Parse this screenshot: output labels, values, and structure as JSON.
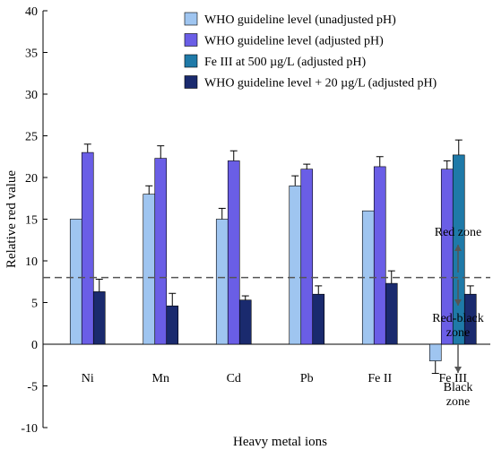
{
  "chart_data": {
    "type": "bar",
    "xlabel": "Heavy metal ions",
    "ylabel": "Relative red value",
    "ylim": [
      -10,
      40
    ],
    "yticks": [
      -10,
      -5,
      0,
      5,
      10,
      15,
      20,
      25,
      30,
      35,
      40
    ],
    "categories": [
      "Ni",
      "Mn",
      "Cd",
      "Pb",
      "Fe II",
      "Fe III"
    ],
    "grid": false,
    "legend_position": "top-right",
    "series": [
      {
        "name": "WHO guideline level (unadjusted pH)",
        "color": "#9fc5f0",
        "values": [
          15.0,
          18.0,
          15.0,
          19.0,
          16.0,
          -2.0
        ],
        "errors": [
          0,
          1.0,
          1.3,
          1.2,
          0,
          1.5
        ]
      },
      {
        "name": "WHO guideline level (adjusted pH)",
        "color": "#6a5ee6",
        "values": [
          23.0,
          22.3,
          22.0,
          21.0,
          21.3,
          21.0
        ],
        "errors": [
          1.0,
          1.5,
          1.2,
          0.6,
          1.2,
          1.0
        ]
      },
      {
        "name": "Fe III at 500 µg/L (adjusted pH)",
        "color": "#1f7aa8",
        "values": [
          null,
          null,
          null,
          null,
          null,
          22.7
        ],
        "errors": [
          0,
          0,
          0,
          0,
          0,
          1.8
        ]
      },
      {
        "name": "WHO guideline level + 20 µg/L (adjusted pH)",
        "color": "#1a2a6e",
        "values": [
          6.3,
          4.6,
          5.3,
          6.0,
          7.3,
          6.0
        ],
        "errors": [
          1.5,
          1.5,
          0.5,
          1.0,
          1.5,
          1.0
        ]
      }
    ],
    "threshold": {
      "value": 8,
      "style": "dashed"
    },
    "annotations": [
      {
        "lines": [
          "Red zone"
        ],
        "arrow": "up"
      },
      {
        "lines": [
          "Red-black",
          "zone"
        ],
        "arrow": "down"
      },
      {
        "lines": [
          "Black",
          "zone"
        ],
        "arrow": "down"
      }
    ]
  }
}
